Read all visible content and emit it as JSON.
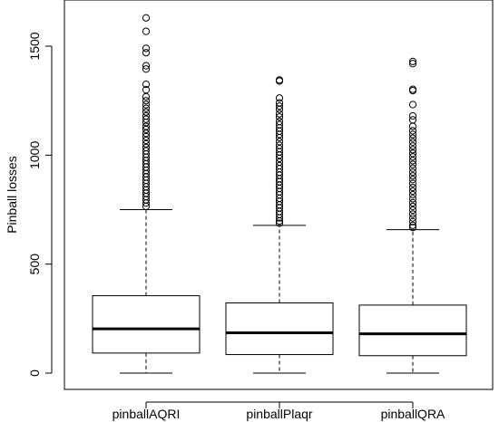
{
  "chart_data": {
    "type": "box",
    "title": "",
    "xlabel": "",
    "ylabel": "Pinball losses",
    "ylim": [
      0,
      1650
    ],
    "yticks": [
      0,
      500,
      1000,
      1500
    ],
    "categories": [
      "pinballAQRI",
      "pinballPlaqr",
      "pinballQRA"
    ],
    "series": [
      {
        "name": "pinballAQRI",
        "min": 0,
        "q1": 92,
        "median": 203,
        "q3": 355,
        "whisker_high": 750,
        "outliers": [
          1630,
          1568,
          1490,
          1470,
          1410,
          1395,
          1325,
          1300,
          1268,
          1250,
          1232,
          1215,
          1198,
          1180,
          1165,
          1150,
          1132,
          1118,
          1100,
          1085,
          1068,
          1052,
          1035,
          1020,
          1005,
          990,
          975,
          960,
          945,
          930,
          915,
          900,
          885,
          870,
          855,
          840,
          825,
          810,
          795,
          780,
          765
        ]
      },
      {
        "name": "pinballPlaqr",
        "min": 0,
        "q1": 85,
        "median": 185,
        "q3": 322,
        "whisker_high": 678,
        "outliers": [
          1345,
          1340,
          1262,
          1240,
          1225,
          1210,
          1190,
          1175,
          1155,
          1140,
          1125,
          1110,
          1095,
          1080,
          1062,
          1045,
          1030,
          1015,
          1000,
          985,
          968,
          952,
          938,
          922,
          908,
          892,
          878,
          862,
          848,
          832,
          818,
          802,
          788,
          772,
          758,
          742,
          728,
          712,
          698,
          688
        ]
      },
      {
        "name": "pinballQRA",
        "min": 0,
        "q1": 80,
        "median": 180,
        "q3": 312,
        "whisker_high": 658,
        "outliers": [
          1430,
          1420,
          1302,
          1296,
          1232,
          1180,
          1162,
          1132,
          1112,
          1095,
          1078,
          1060,
          1042,
          1025,
          1008,
          992,
          975,
          958,
          940,
          922,
          905,
          888,
          870,
          852,
          835,
          818,
          800,
          782,
          765,
          748,
          730,
          712,
          695,
          678,
          668
        ]
      }
    ]
  }
}
